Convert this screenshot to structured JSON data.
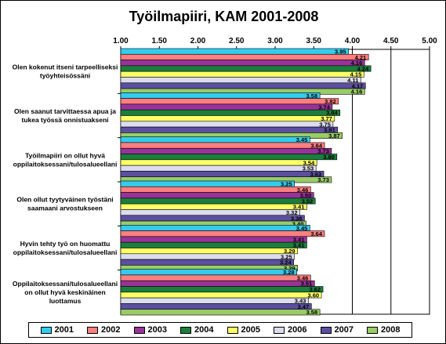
{
  "chart_data": {
    "type": "bar",
    "orientation": "horizontal",
    "title": "Työilmapiiri, KAM 2001-2008",
    "xlim": [
      1.0,
      5.0
    ],
    "ticks": [
      "1.00",
      "1.50",
      "2.00",
      "2.50",
      "3.00",
      "3.50",
      "4.00",
      "4.50",
      "5.00"
    ],
    "tick_values": [
      1.0,
      1.5,
      2.0,
      2.5,
      3.0,
      3.5,
      4.0,
      4.5,
      5.0
    ],
    "categories": [
      [
        "Olen kokenut itseni tarpeelliseksi",
        "työyhteisössäni"
      ],
      [
        "Olen saanut tarvittaessa apua ja",
        "tukea työssä onnistuakseni"
      ],
      [
        "Työilmapiiri on ollut hyvä",
        "oppilaitoksessani/tulosalueellani"
      ],
      [
        "Olen ollut tyytyväinen työstäni",
        "saamaani arvostukseen"
      ],
      [
        "Hyvin tehty työ on huomattu",
        "oppilaitoksessani/tulosalueellani"
      ],
      [
        "Oppilaitoksessani/tulosalueellani",
        "on ollut hyvä keskinäinen",
        "luottamus"
      ]
    ],
    "series": [
      {
        "name": "2001",
        "color": "#33CCEE",
        "values": [
          3.95,
          3.58,
          3.45,
          3.25,
          3.45,
          3.28
        ]
      },
      {
        "name": "2002",
        "color": "#FF7F7F",
        "values": [
          4.21,
          3.82,
          3.64,
          3.46,
          3.64,
          3.46
        ]
      },
      {
        "name": "2003",
        "color": "#993399",
        "values": [
          4.16,
          3.74,
          3.73,
          3.5,
          3.41,
          3.51
        ]
      },
      {
        "name": "2004",
        "color": "#1A7F3C",
        "values": [
          4.24,
          3.84,
          3.8,
          3.52,
          3.41,
          3.62
        ]
      },
      {
        "name": "2005",
        "color": "#FFFF66",
        "values": [
          4.15,
          3.77,
          3.54,
          3.41,
          3.29,
          3.6
        ]
      },
      {
        "name": "2006",
        "color": "#DCDCF0",
        "values": [
          4.11,
          3.75,
          3.53,
          3.32,
          3.25,
          3.43
        ]
      },
      {
        "name": "2007",
        "color": "#5C4FA0",
        "values": [
          4.17,
          3.81,
          3.63,
          3.38,
          3.24,
          3.47
        ]
      },
      {
        "name": "2008",
        "color": "#99CC66",
        "values": [
          4.16,
          3.87,
          3.73,
          3.4,
          3.29,
          3.58
        ]
      }
    ],
    "grid": true,
    "legend_position": "bottom"
  }
}
